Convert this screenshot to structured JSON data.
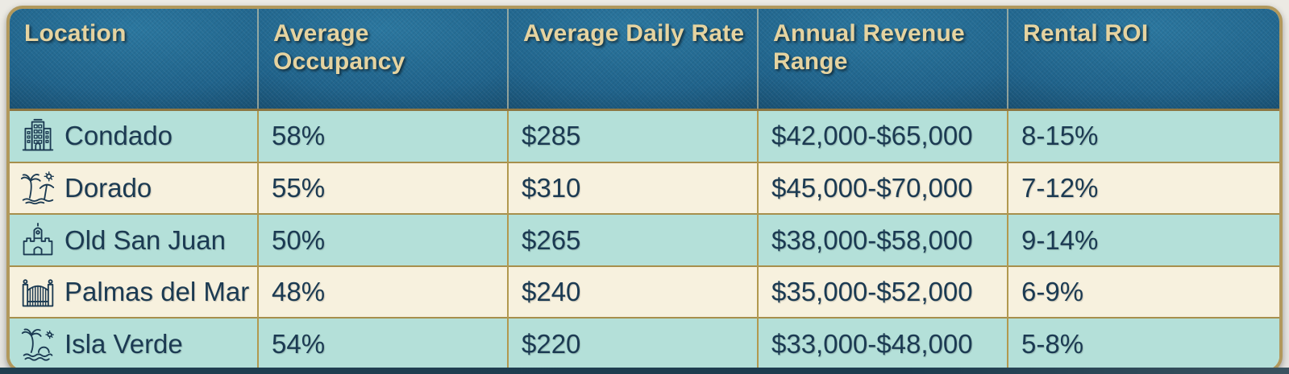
{
  "chart_data": {
    "type": "table",
    "title": "",
    "columns": [
      "Location",
      "Average Occupancy",
      "Average Daily Rate",
      "Annual Revenue Range",
      "Rental ROI"
    ],
    "rows": [
      {
        "icon": "building-icon",
        "location": "Condado",
        "occupancy": "58%",
        "daily_rate": "$285",
        "revenue_range": "$42,000-$65,000",
        "roi": "8-15%"
      },
      {
        "icon": "beach-umbrella-icon",
        "location": "Dorado",
        "occupancy": "55%",
        "daily_rate": "$310",
        "revenue_range": "$45,000-$70,000",
        "roi": "7-12%"
      },
      {
        "icon": "castle-icon",
        "location": "Old San Juan",
        "occupancy": "50%",
        "daily_rate": "$265",
        "revenue_range": "$38,000-$58,000",
        "roi": "9-14%"
      },
      {
        "icon": "gate-icon",
        "location": "Palmas del Mar",
        "occupancy": "48%",
        "daily_rate": "$240",
        "revenue_range": "$35,000-$52,000",
        "roi": "6-9%"
      },
      {
        "icon": "palm-island-icon",
        "location": "Isla Verde",
        "occupancy": "54%",
        "daily_rate": "$220",
        "revenue_range": "$33,000-$48,000",
        "roi": "5-8%"
      }
    ]
  },
  "colors": {
    "header_bg_top": "#2b779f",
    "header_bg_bottom": "#123e5b",
    "header_text": "#e5d3a0",
    "row_teal": "#b4e0d9",
    "row_cream": "#f7f1de",
    "border_gold": "#b1985c",
    "body_text": "#1b3a52",
    "bottom_strip": "#1d3c4f"
  }
}
